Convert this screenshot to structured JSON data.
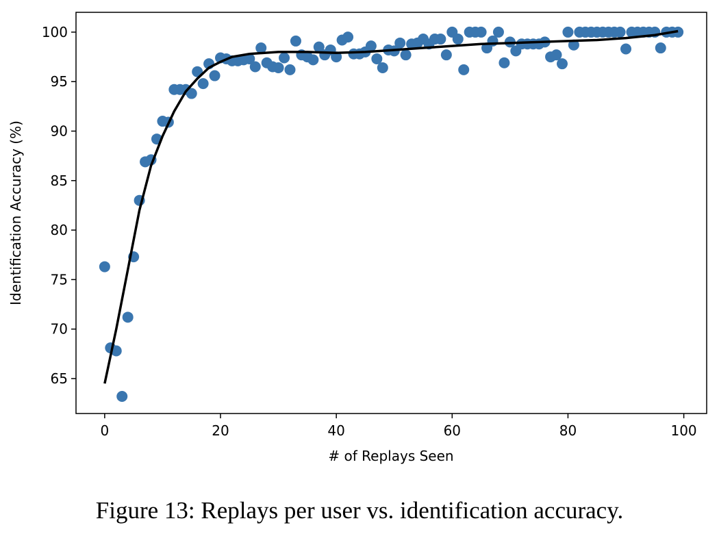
{
  "chart_data": {
    "type": "scatter",
    "xlabel": "# of Replays Seen",
    "ylabel": "Identification Accuracy (%)",
    "caption": "Figure 13: Replays per user vs. identification accuracy.",
    "xlim": [
      -4.95,
      103.95
    ],
    "ylim": [
      61.47,
      102.0
    ],
    "xticks": [
      0,
      20,
      40,
      60,
      80,
      100
    ],
    "yticks": [
      65,
      70,
      75,
      80,
      85,
      90,
      95,
      100
    ],
    "series": [
      {
        "type": "scatter",
        "color": "#3a76af",
        "x": [
          0,
          1,
          2,
          3,
          4,
          5,
          6,
          7,
          8,
          9,
          10,
          11,
          12,
          13,
          14,
          15,
          16,
          17,
          18,
          19,
          20,
          21,
          22,
          23,
          24,
          25,
          26,
          27,
          28,
          29,
          30,
          31,
          32,
          33,
          34,
          35,
          36,
          37,
          38,
          39,
          40,
          41,
          42,
          43,
          44,
          45,
          46,
          47,
          48,
          49,
          50,
          51,
          52,
          53,
          54,
          55,
          56,
          57,
          58,
          59,
          60,
          61,
          62,
          63,
          64,
          65,
          66,
          67,
          68,
          69,
          70,
          71,
          72,
          73,
          74,
          75,
          76,
          77,
          78,
          79,
          80,
          81,
          82,
          83,
          84,
          85,
          86,
          87,
          88,
          89,
          90,
          91,
          92,
          93,
          94,
          95,
          96,
          97,
          98,
          99
        ],
        "values": [
          76.3,
          68.1,
          67.8,
          63.2,
          71.2,
          77.3,
          83.0,
          86.9,
          87.1,
          89.2,
          91.0,
          90.9,
          94.2,
          94.2,
          94.2,
          93.8,
          96.0,
          94.8,
          96.8,
          95.6,
          97.4,
          97.3,
          97.1,
          97.1,
          97.2,
          97.3,
          96.5,
          98.4,
          96.9,
          96.5,
          96.4,
          97.4,
          96.2,
          99.1,
          97.7,
          97.5,
          97.2,
          98.5,
          97.7,
          98.2,
          97.5,
          99.2,
          99.5,
          97.8,
          97.8,
          98.0,
          98.6,
          97.3,
          96.4,
          98.2,
          98.1,
          98.9,
          97.7,
          98.8,
          98.9,
          99.3,
          98.8,
          99.3,
          99.3,
          97.7,
          100,
          99.3,
          96.2,
          100,
          100,
          100,
          98.4,
          99.1,
          100,
          96.9,
          99.0,
          98.1,
          98.8,
          98.8,
          98.8,
          98.8,
          99.0,
          97.5,
          97.7,
          96.8,
          100,
          98.7,
          100,
          100,
          100,
          100,
          100,
          100,
          100,
          100,
          98.3,
          100,
          100,
          100,
          100,
          100,
          98.4,
          100,
          100,
          100
        ]
      },
      {
        "type": "line",
        "color": "#000000",
        "x": [
          0,
          2,
          4,
          6,
          8,
          10,
          12,
          14,
          16,
          18,
          20,
          22,
          25,
          30,
          35,
          40,
          45,
          50,
          55,
          60,
          65,
          70,
          75,
          80,
          85,
          90,
          95,
          99
        ],
        "values": [
          64.5,
          70.0,
          76.0,
          82.0,
          86.5,
          89.5,
          92.0,
          94.0,
          95.3,
          96.4,
          97.0,
          97.5,
          97.8,
          98.0,
          98.0,
          97.9,
          98.0,
          98.2,
          98.4,
          98.6,
          98.8,
          98.9,
          99.0,
          99.1,
          99.2,
          99.4,
          99.7,
          100.1
        ]
      }
    ]
  }
}
